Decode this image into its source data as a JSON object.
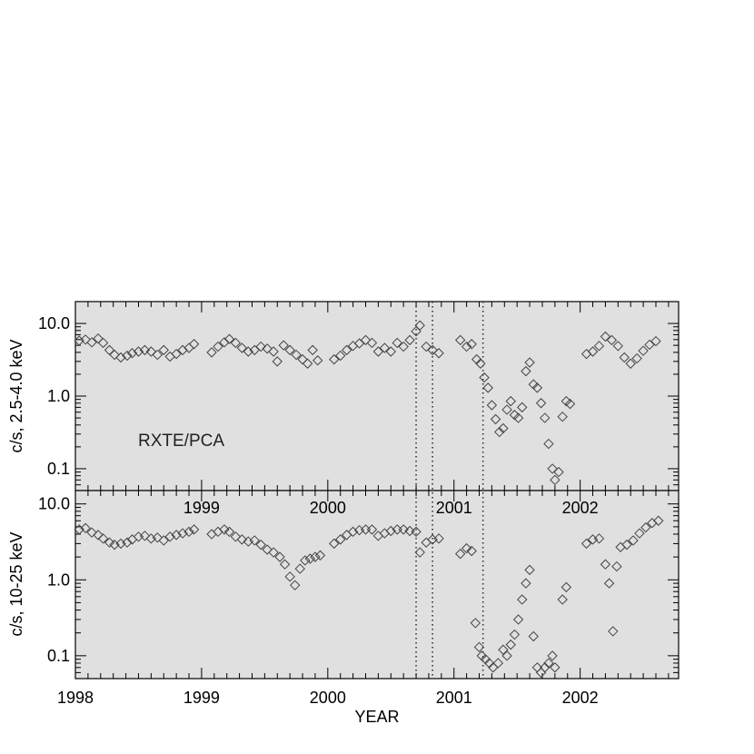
{
  "chart_data": {
    "type": "scatter",
    "shared_x": {
      "label": "YEAR",
      "range": [
        1998.0,
        2002.78
      ],
      "ticks": [
        1998,
        1999,
        2000,
        2001,
        2002
      ],
      "tick_labels": [
        "1998",
        "1999",
        "2000",
        "2001",
        "2002"
      ]
    },
    "vertical_markers": [
      2000.7,
      2000.83,
      2001.23
    ],
    "panels": [
      {
        "ylabel": "c/s, 2.5-4.0 keV",
        "yscale": "log",
        "ylim": [
          0.05,
          20
        ],
        "yticks": [
          0.1,
          1.0,
          10.0
        ],
        "ytick_labels": [
          "0.1",
          "1.0",
          "10.0"
        ],
        "annotation": "RXTE/PCA",
        "points": [
          [
            1998.03,
            5.8
          ],
          [
            1998.08,
            6.0
          ],
          [
            1998.13,
            5.5
          ],
          [
            1998.18,
            6.2
          ],
          [
            1998.22,
            5.4
          ],
          [
            1998.27,
            4.3
          ],
          [
            1998.31,
            3.7
          ],
          [
            1998.36,
            3.4
          ],
          [
            1998.41,
            3.6
          ],
          [
            1998.45,
            3.9
          ],
          [
            1998.5,
            4.1
          ],
          [
            1998.55,
            4.3
          ],
          [
            1998.6,
            4.1
          ],
          [
            1998.65,
            3.7
          ],
          [
            1998.7,
            4.3
          ],
          [
            1998.75,
            3.5
          ],
          [
            1998.8,
            3.8
          ],
          [
            1998.85,
            4.3
          ],
          [
            1998.9,
            4.6
          ],
          [
            1998.94,
            5.2
          ],
          [
            1999.08,
            4.0
          ],
          [
            1999.13,
            4.8
          ],
          [
            1999.18,
            5.5
          ],
          [
            1999.22,
            6.1
          ],
          [
            1999.27,
            5.4
          ],
          [
            1999.32,
            4.6
          ],
          [
            1999.37,
            4.1
          ],
          [
            1999.42,
            4.3
          ],
          [
            1999.47,
            4.8
          ],
          [
            1999.52,
            4.5
          ],
          [
            1999.57,
            4.1
          ],
          [
            1999.6,
            3.0
          ],
          [
            1999.65,
            5.0
          ],
          [
            1999.7,
            4.3
          ],
          [
            1999.75,
            3.7
          ],
          [
            1999.8,
            3.2
          ],
          [
            1999.84,
            2.8
          ],
          [
            1999.88,
            4.3
          ],
          [
            1999.92,
            3.1
          ],
          [
            2000.05,
            3.2
          ],
          [
            2000.1,
            3.6
          ],
          [
            2000.15,
            4.3
          ],
          [
            2000.2,
            4.9
          ],
          [
            2000.25,
            5.3
          ],
          [
            2000.3,
            5.9
          ],
          [
            2000.35,
            5.4
          ],
          [
            2000.4,
            4.1
          ],
          [
            2000.45,
            4.6
          ],
          [
            2000.5,
            4.1
          ],
          [
            2000.55,
            5.4
          ],
          [
            2000.6,
            4.8
          ],
          [
            2000.65,
            5.9
          ],
          [
            2000.7,
            7.8
          ],
          [
            2000.73,
            9.4
          ],
          [
            2000.78,
            4.8
          ],
          [
            2000.83,
            4.3
          ],
          [
            2000.88,
            3.9
          ],
          [
            2001.05,
            5.9
          ],
          [
            2001.1,
            4.8
          ],
          [
            2001.14,
            5.2
          ],
          [
            2001.18,
            3.2
          ],
          [
            2001.21,
            2.8
          ],
          [
            2001.24,
            1.8
          ],
          [
            2001.27,
            1.3
          ],
          [
            2001.3,
            0.75
          ],
          [
            2001.33,
            0.48
          ],
          [
            2001.36,
            0.32
          ],
          [
            2001.39,
            0.36
          ],
          [
            2001.42,
            0.65
          ],
          [
            2001.45,
            0.85
          ],
          [
            2001.48,
            0.55
          ],
          [
            2001.51,
            0.5
          ],
          [
            2001.54,
            0.7
          ],
          [
            2001.57,
            2.2
          ],
          [
            2001.6,
            2.9
          ],
          [
            2001.63,
            1.45
          ],
          [
            2001.66,
            1.3
          ],
          [
            2001.69,
            0.8
          ],
          [
            2001.72,
            0.5
          ],
          [
            2001.75,
            0.22
          ],
          [
            2001.78,
            0.1
          ],
          [
            2001.8,
            0.07
          ],
          [
            2001.83,
            0.09
          ],
          [
            2001.86,
            0.52
          ],
          [
            2001.89,
            0.85
          ],
          [
            2001.92,
            0.78
          ],
          [
            2002.05,
            3.8
          ],
          [
            2002.1,
            4.1
          ],
          [
            2002.15,
            4.9
          ],
          [
            2002.2,
            6.6
          ],
          [
            2002.25,
            5.9
          ],
          [
            2002.3,
            4.9
          ],
          [
            2002.35,
            3.4
          ],
          [
            2002.4,
            2.8
          ],
          [
            2002.45,
            3.3
          ],
          [
            2002.5,
            4.2
          ],
          [
            2002.55,
            5.1
          ],
          [
            2002.6,
            5.7
          ]
        ]
      },
      {
        "ylabel": "c/s, 10-25 keV",
        "yscale": "log",
        "ylim": [
          0.05,
          15
        ],
        "yticks": [
          0.1,
          1.0,
          10.0
        ],
        "ytick_labels": [
          "0.1",
          "1.0",
          "10.0"
        ],
        "top_axis_ticks": [
          1999,
          2000,
          2001,
          2002
        ],
        "top_axis_labels": [
          "1999",
          "2000",
          "2001",
          "2002"
        ],
        "points": [
          [
            1998.03,
            4.6
          ],
          [
            1998.08,
            4.8
          ],
          [
            1998.13,
            4.2
          ],
          [
            1998.18,
            3.9
          ],
          [
            1998.22,
            3.5
          ],
          [
            1998.27,
            3.1
          ],
          [
            1998.31,
            2.9
          ],
          [
            1998.36,
            3.0
          ],
          [
            1998.41,
            3.1
          ],
          [
            1998.45,
            3.4
          ],
          [
            1998.5,
            3.7
          ],
          [
            1998.55,
            3.8
          ],
          [
            1998.6,
            3.5
          ],
          [
            1998.65,
            3.6
          ],
          [
            1998.7,
            3.3
          ],
          [
            1998.75,
            3.7
          ],
          [
            1998.8,
            3.9
          ],
          [
            1998.85,
            4.1
          ],
          [
            1998.9,
            4.3
          ],
          [
            1998.94,
            4.6
          ],
          [
            1999.08,
            4.0
          ],
          [
            1999.13,
            4.3
          ],
          [
            1999.18,
            4.6
          ],
          [
            1999.22,
            4.3
          ],
          [
            1999.27,
            3.7
          ],
          [
            1999.32,
            3.4
          ],
          [
            1999.37,
            3.2
          ],
          [
            1999.42,
            3.3
          ],
          [
            1999.47,
            2.9
          ],
          [
            1999.52,
            2.5
          ],
          [
            1999.57,
            2.3
          ],
          [
            1999.62,
            2.0
          ],
          [
            1999.66,
            1.6
          ],
          [
            1999.7,
            1.1
          ],
          [
            1999.74,
            0.85
          ],
          [
            1999.78,
            1.4
          ],
          [
            1999.82,
            1.8
          ],
          [
            1999.86,
            1.9
          ],
          [
            1999.9,
            2.0
          ],
          [
            1999.94,
            2.1
          ],
          [
            2000.05,
            3.0
          ],
          [
            2000.1,
            3.4
          ],
          [
            2000.15,
            3.9
          ],
          [
            2000.2,
            4.3
          ],
          [
            2000.25,
            4.5
          ],
          [
            2000.3,
            4.6
          ],
          [
            2000.35,
            4.6
          ],
          [
            2000.4,
            3.8
          ],
          [
            2000.45,
            4.1
          ],
          [
            2000.5,
            4.4
          ],
          [
            2000.55,
            4.6
          ],
          [
            2000.6,
            4.6
          ],
          [
            2000.65,
            4.4
          ],
          [
            2000.7,
            4.3
          ],
          [
            2000.73,
            2.3
          ],
          [
            2000.78,
            3.1
          ],
          [
            2000.83,
            3.4
          ],
          [
            2000.88,
            3.5
          ],
          [
            2001.05,
            2.2
          ],
          [
            2001.1,
            2.6
          ],
          [
            2001.14,
            2.4
          ],
          [
            2001.17,
            0.27
          ],
          [
            2001.2,
            0.13
          ],
          [
            2001.22,
            0.1
          ],
          [
            2001.25,
            0.09
          ],
          [
            2001.28,
            0.08
          ],
          [
            2001.31,
            0.07
          ],
          [
            2001.35,
            0.08
          ],
          [
            2001.39,
            0.12
          ],
          [
            2001.42,
            0.1
          ],
          [
            2001.45,
            0.14
          ],
          [
            2001.48,
            0.19
          ],
          [
            2001.51,
            0.3
          ],
          [
            2001.54,
            0.55
          ],
          [
            2001.57,
            0.9
          ],
          [
            2001.6,
            1.35
          ],
          [
            2001.63,
            0.18
          ],
          [
            2001.66,
            0.07
          ],
          [
            2001.69,
            0.06
          ],
          [
            2001.72,
            0.07
          ],
          [
            2001.75,
            0.08
          ],
          [
            2001.78,
            0.1
          ],
          [
            2001.8,
            0.07
          ],
          [
            2001.86,
            0.55
          ],
          [
            2001.89,
            0.8
          ],
          [
            2002.05,
            3.0
          ],
          [
            2002.1,
            3.4
          ],
          [
            2002.15,
            3.5
          ],
          [
            2002.2,
            1.6
          ],
          [
            2002.23,
            0.9
          ],
          [
            2002.26,
            0.21
          ],
          [
            2002.29,
            1.5
          ],
          [
            2002.32,
            2.7
          ],
          [
            2002.37,
            2.9
          ],
          [
            2002.42,
            3.3
          ],
          [
            2002.47,
            4.1
          ],
          [
            2002.52,
            4.9
          ],
          [
            2002.57,
            5.6
          ],
          [
            2002.62,
            6.0
          ]
        ]
      }
    ]
  }
}
